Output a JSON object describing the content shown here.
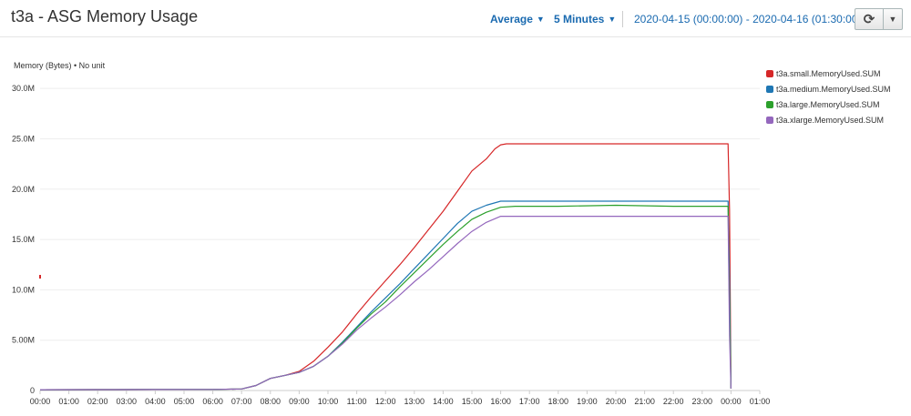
{
  "header": {
    "title": "t3a - ASG Memory Usage",
    "statistic": "Average",
    "period": "5 Minutes",
    "time_range": "2020-04-15 (00:00:00) - 2020-04-16 (01:30:00)",
    "refresh_icon": "refresh-icon",
    "menu_icon": "chevron-down-icon"
  },
  "colors": {
    "small": "#d62728",
    "medium": "#1f77b4",
    "large": "#2ca02c",
    "xlarge": "#9467bd",
    "grid": "#eeeeee",
    "axis": "#cccccc"
  },
  "chart_data": {
    "type": "line",
    "title": "t3a - ASG Memory Usage",
    "ylabel": "Memory (Bytes) • No unit",
    "xlabel": "",
    "x_unit": "hours since 2020-04-15 00:00",
    "xlim": [
      0,
      25
    ],
    "ylim": [
      0,
      32000000
    ],
    "x_ticks": [
      {
        "x": 0,
        "label": "00:00"
      },
      {
        "x": 1,
        "label": "01:00"
      },
      {
        "x": 2,
        "label": "02:00"
      },
      {
        "x": 3,
        "label": "03:00"
      },
      {
        "x": 4,
        "label": "04:00"
      },
      {
        "x": 5,
        "label": "05:00"
      },
      {
        "x": 6,
        "label": "06:00"
      },
      {
        "x": 7,
        "label": "07:00"
      },
      {
        "x": 8,
        "label": "08:00"
      },
      {
        "x": 9,
        "label": "09:00"
      },
      {
        "x": 10,
        "label": "10:00"
      },
      {
        "x": 11,
        "label": "11:00"
      },
      {
        "x": 12,
        "label": "12:00"
      },
      {
        "x": 13,
        "label": "13:00"
      },
      {
        "x": 14,
        "label": "14:00"
      },
      {
        "x": 15,
        "label": "15:00"
      },
      {
        "x": 16,
        "label": "16:00"
      },
      {
        "x": 17,
        "label": "17:00"
      },
      {
        "x": 18,
        "label": "18:00"
      },
      {
        "x": 19,
        "label": "19:00"
      },
      {
        "x": 20,
        "label": "20:00"
      },
      {
        "x": 21,
        "label": "21:00"
      },
      {
        "x": 22,
        "label": "22:00"
      },
      {
        "x": 23,
        "label": "23:00"
      },
      {
        "x": 24,
        "label": "00:00"
      },
      {
        "x": 25,
        "label": "01:00"
      }
    ],
    "y_ticks": [
      {
        "y": 0,
        "label": "0"
      },
      {
        "y": 5000000,
        "label": "5.00M"
      },
      {
        "y": 10000000,
        "label": "10.0M"
      },
      {
        "y": 15000000,
        "label": "15.0M"
      },
      {
        "y": 20000000,
        "label": "20.0M"
      },
      {
        "y": 25000000,
        "label": "25.0M"
      },
      {
        "y": 30000000,
        "label": "30.0M"
      }
    ],
    "grid": true,
    "legend_position": "right",
    "outliers": [
      {
        "series": "t3a.small.MemoryUsed.SUM",
        "x": 0.0,
        "y": 11300000
      }
    ],
    "series": [
      {
        "name": "t3a.small.MemoryUsed.SUM",
        "color_key": "small",
        "x": [
          0,
          2,
          4,
          6,
          7,
          7.5,
          8,
          8.5,
          9,
          9.5,
          10,
          10.5,
          11,
          11.5,
          12,
          12.5,
          13,
          13.5,
          14,
          14.5,
          15,
          15.5,
          15.8,
          16,
          16.2,
          20,
          23.9,
          23.95,
          24.0
        ],
        "y": [
          80000,
          90000,
          100000,
          110000,
          150000,
          500000,
          1200000,
          1500000,
          1900000,
          2900000,
          4300000,
          5800000,
          7600000,
          9300000,
          10900000,
          12500000,
          14200000,
          16000000,
          17800000,
          19800000,
          21800000,
          23000000,
          24000000,
          24400000,
          24500000,
          24500000,
          24500000,
          18000000,
          200000
        ]
      },
      {
        "name": "t3a.medium.MemoryUsed.SUM",
        "color_key": "medium",
        "x": [
          0,
          2,
          4,
          6,
          7,
          7.5,
          8,
          8.5,
          9,
          9.5,
          10,
          10.5,
          11,
          11.5,
          12,
          12.5,
          13,
          13.5,
          14,
          14.5,
          15,
          15.5,
          16,
          20,
          23.9,
          23.95,
          24.0
        ],
        "y": [
          80000,
          90000,
          100000,
          110000,
          150000,
          500000,
          1200000,
          1500000,
          1800000,
          2400000,
          3400000,
          4800000,
          6300000,
          7800000,
          9200000,
          10600000,
          12100000,
          13600000,
          15100000,
          16600000,
          17800000,
          18400000,
          18800000,
          18800000,
          18800000,
          11000000,
          200000
        ]
      },
      {
        "name": "t3a.large.MemoryUsed.SUM",
        "color_key": "large",
        "x": [
          0,
          2,
          4,
          6,
          7,
          7.5,
          8,
          8.5,
          9,
          9.5,
          10,
          10.5,
          11,
          11.5,
          12,
          12.5,
          13,
          13.5,
          14,
          14.5,
          15,
          15.5,
          16,
          16.5,
          18,
          20,
          22,
          23.9,
          23.95,
          24.0
        ],
        "y": [
          80000,
          90000,
          100000,
          110000,
          150000,
          500000,
          1200000,
          1500000,
          1800000,
          2400000,
          3400000,
          4700000,
          6200000,
          7600000,
          8800000,
          10300000,
          11700000,
          13100000,
          14500000,
          15800000,
          17000000,
          17700000,
          18200000,
          18300000,
          18300000,
          18400000,
          18300000,
          18300000,
          8000000,
          200000
        ]
      },
      {
        "name": "t3a.xlarge.MemoryUsed.SUM",
        "color_key": "xlarge",
        "x": [
          0,
          2,
          4,
          6,
          7,
          7.5,
          8,
          8.5,
          9,
          9.5,
          10,
          10.5,
          11,
          11.5,
          12,
          12.5,
          13,
          13.5,
          14,
          14.5,
          15,
          15.5,
          16,
          20,
          23.9,
          23.95,
          24.0
        ],
        "y": [
          80000,
          90000,
          100000,
          110000,
          150000,
          500000,
          1200000,
          1500000,
          1800000,
          2400000,
          3400000,
          4600000,
          6000000,
          7200000,
          8300000,
          9500000,
          10800000,
          12000000,
          13300000,
          14600000,
          15800000,
          16700000,
          17300000,
          17300000,
          17300000,
          5500000,
          200000
        ]
      }
    ]
  }
}
